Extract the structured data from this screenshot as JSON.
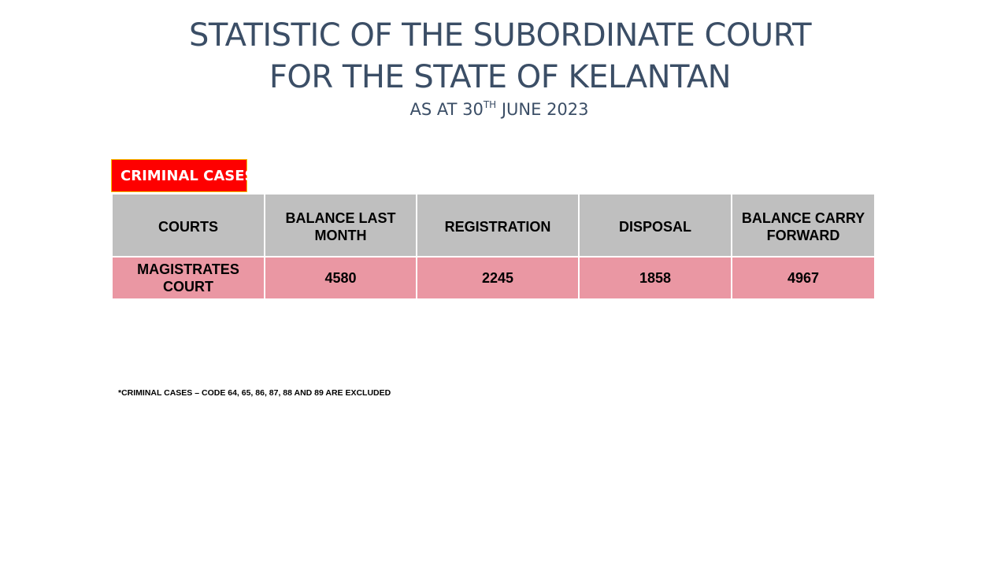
{
  "title": {
    "line1": "STATISTIC OF THE SUBORDINATE COURT",
    "line2": "FOR THE STATE OF KELANTAN",
    "subtitle_prefix": "AS AT 30",
    "subtitle_sup": "TH",
    "subtitle_suffix": " JUNE 2023"
  },
  "section_label": "CRIMINAL CASES",
  "table": {
    "headers": [
      "COURTS",
      "BALANCE LAST MONTH",
      "REGISTRATION",
      "DISPOSAL",
      "BALANCE CARRY FORWARD"
    ],
    "rows": [
      [
        "MAGISTRATES COURT",
        "4580",
        "2245",
        "1858",
        "4967"
      ]
    ]
  },
  "footnote": "*CRIMINAL CASES – CODE 64, 65, 86, 87, 88 AND 89 ARE EXCLUDED",
  "colors": {
    "title_text": "#3b4e66",
    "label_background": "#fe0000",
    "header_background": "#bfbfbf",
    "row_background": "#ea97a3"
  }
}
